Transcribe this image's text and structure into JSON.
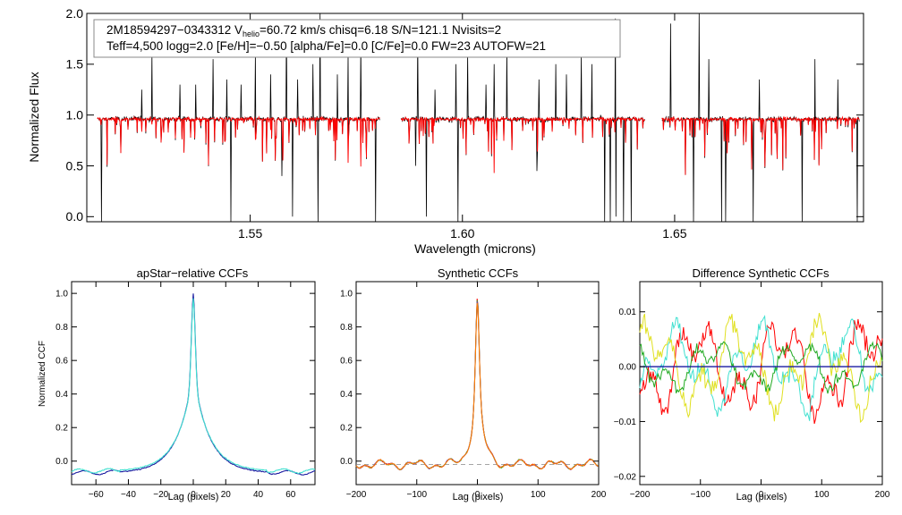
{
  "figure": {
    "info_line1_prefix": "2M18594297−0343312  V",
    "info_line1_sub": "helio",
    "info_line1_suffix": "=60.72 km/s  chisq=6.18  S/N=121.1  Nvisits=2",
    "info_line2": "Teff=4,500 logg=2.0 [Fe/H]=−0.50 [alpha/Fe]=0.0 [C/Fe]=0.0 FW=23 AUTOFW=21"
  },
  "colors": {
    "observed": "#000000",
    "model": "#ff0000",
    "cyan": "#40e0d0",
    "blue": "#1a1aa0",
    "green": "#22aa22",
    "yellow": "#e0e020",
    "orange": "#ff7f00",
    "purple": "#7a3aa0",
    "frame": "#000000"
  },
  "chart_data": [
    {
      "id": "spectrum",
      "type": "line",
      "title": "",
      "xlabel": "Wavelength (microns)",
      "ylabel": "Normalized Flux",
      "xlim": [
        1.5115,
        1.6945
      ],
      "ylim": [
        -0.05,
        2.0
      ],
      "xticks": [
        1.55,
        1.6,
        1.65
      ],
      "xtick_labels": [
        "1.55",
        "1.60",
        "1.65"
      ],
      "yticks": [
        0.0,
        0.5,
        1.0,
        1.5,
        2.0
      ],
      "ytick_labels": [
        "0.0",
        "0.5",
        "1.0",
        "1.5",
        "2.0"
      ],
      "chips": [
        [
          1.514,
          1.5805
        ],
        [
          1.5855,
          1.643
        ],
        [
          1.647,
          1.6935
        ]
      ],
      "continuum": 0.96,
      "series": [
        {
          "name": "observed spectrum",
          "color": "#000000"
        },
        {
          "name": "synthetic model",
          "color": "#ff0000"
        }
      ],
      "emission_spikes": [
        1.5245,
        1.5268,
        1.5335,
        1.5372,
        1.5412,
        1.5445,
        1.5478,
        1.5512,
        1.5548,
        1.5585,
        1.5612,
        1.5648,
        1.5665,
        1.5705,
        1.573,
        1.576,
        1.5795,
        1.5895,
        1.5935,
        1.5985,
        1.6012,
        1.6055,
        1.6075,
        1.6105,
        1.618,
        1.622,
        1.6245,
        1.628,
        1.6305,
        1.6335,
        1.636,
        1.6398,
        1.649,
        1.6558,
        1.658,
        1.67,
        1.683,
        1.6885
      ],
      "emission_heights": [
        1.25,
        1.6,
        1.3,
        1.3,
        1.55,
        1.35,
        1.3,
        1.6,
        1.4,
        1.9,
        1.35,
        1.5,
        2.0,
        1.4,
        1.6,
        1.7,
        1.55,
        1.75,
        1.25,
        1.5,
        1.6,
        1.3,
        1.5,
        1.65,
        1.35,
        1.5,
        1.4,
        1.6,
        1.5,
        1.55,
        1.95,
        1.35,
        1.9,
        2.0,
        1.55,
        1.35,
        1.55,
        1.35
      ],
      "absorption_spikes": [
        1.515,
        1.5455,
        1.5575,
        1.56,
        1.566,
        1.5795,
        1.589,
        1.5915,
        1.599,
        1.6175,
        1.6335,
        1.6348,
        1.6362,
        1.638,
        1.6398,
        1.6545,
        1.661,
        1.662,
        1.6685,
        1.68,
        1.693
      ],
      "absorption_depths": [
        -0.05,
        -0.05,
        0.4,
        0.0,
        -0.05,
        -0.05,
        0.5,
        0.0,
        -0.05,
        0.45,
        -0.05,
        -0.05,
        0.0,
        -0.05,
        -0.05,
        -0.05,
        -0.05,
        -0.05,
        -0.05,
        -0.05,
        -0.05
      ]
    },
    {
      "id": "apstar-ccf",
      "type": "line",
      "title": "apStar−relative CCFs",
      "xlabel": "Lag (pixels)",
      "ylabel": "Normalized CCF",
      "xlim": [
        -75,
        75
      ],
      "ylim": [
        -0.14,
        1.07
      ],
      "xticks": [
        -60,
        -40,
        -20,
        0,
        20,
        40,
        60
      ],
      "xtick_labels": [
        "−60",
        "−40",
        "−20",
        "0",
        "20",
        "40",
        "60"
      ],
      "yticks": [
        0.0,
        0.2,
        0.4,
        0.6,
        0.8,
        1.0
      ],
      "ytick_labels": [
        "0.0",
        "0.2",
        "0.4",
        "0.6",
        "0.8",
        "1.0"
      ],
      "series": [
        {
          "name": "visit 1",
          "color": "#1a1aa0",
          "peak": 1.0,
          "floor": -0.07
        },
        {
          "name": "visit 2",
          "color": "#40e0d0",
          "peak": 0.97,
          "floor": -0.06
        }
      ]
    },
    {
      "id": "synthetic-ccf",
      "type": "line",
      "title": "Synthetic CCFs",
      "xlabel": "Lag (pixels)",
      "ylabel": "",
      "xlim": [
        -200,
        200
      ],
      "ylim": [
        -0.14,
        1.07
      ],
      "xticks": [
        -200,
        -100,
        0,
        100,
        200
      ],
      "xtick_labels": [
        "−200",
        "−100",
        "0",
        "100",
        "200"
      ],
      "yticks": [
        0.0,
        0.2,
        0.4,
        0.6,
        0.8,
        1.0
      ],
      "ytick_labels": [
        "0.0",
        "0.2",
        "0.4",
        "0.6",
        "0.8",
        "1.0"
      ],
      "baseline": -0.02,
      "series": [
        {
          "name": "model",
          "color": "#ff0000",
          "peak": 1.0
        },
        {
          "name": "visit 1",
          "color": "#22aa22",
          "peak": 0.99
        },
        {
          "name": "visit 2",
          "color": "#7a3aa0",
          "peak": 0.98
        },
        {
          "name": "combined",
          "color": "#ff7f00",
          "peak": 0.97
        }
      ]
    },
    {
      "id": "difference-ccf",
      "type": "line",
      "title": "Difference Synthetic CCFs",
      "xlabel": "Lag (pixels)",
      "ylabel": "",
      "xlim": [
        -200,
        200
      ],
      "ylim": [
        -0.0215,
        0.0155
      ],
      "xticks": [
        -200,
        -100,
        0,
        100,
        200
      ],
      "xtick_labels": [
        "−200",
        "−100",
        "0",
        "100",
        "200"
      ],
      "yticks": [
        -0.02,
        -0.01,
        0.0,
        0.01
      ],
      "ytick_labels": [
        "−0.02",
        "−0.01",
        "0.00",
        "0.01"
      ],
      "series": [
        {
          "name": "red",
          "color": "#ff0000",
          "amp": 0.0085
        },
        {
          "name": "cyan",
          "color": "#40e0d0",
          "amp": 0.0075
        },
        {
          "name": "yellow",
          "color": "#e0e020",
          "amp": 0.008
        },
        {
          "name": "green",
          "color": "#22aa22",
          "amp": 0.0045
        },
        {
          "name": "zero-line",
          "color": "#1a1aa0",
          "amp": 0.0
        }
      ]
    }
  ]
}
